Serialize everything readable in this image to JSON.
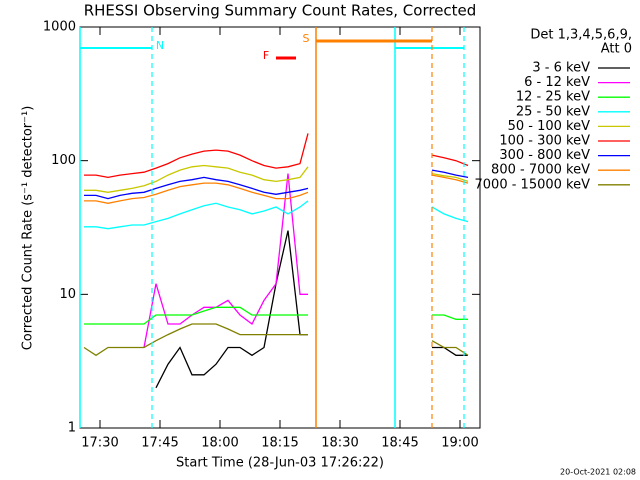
{
  "chart_data": {
    "type": "line",
    "title": "RHESSI Observing Summary Count Rates, Corrected",
    "xlabel": "Start Time (28-Jun-03 17:26:22)",
    "ylabel": "Corrected Count Rate (s⁻¹ detector⁻¹)",
    "legend_header": [
      "Det 1,3,4,5,6,9,",
      "Att 0"
    ],
    "footer": "20-Oct-2021 02:08",
    "log_y": true,
    "xlim": [
      1045,
      1145
    ],
    "xticks": [
      {
        "value": 1050,
        "label": "17:30"
      },
      {
        "value": 1065,
        "label": "17:45"
      },
      {
        "value": 1080,
        "label": "18:00"
      },
      {
        "value": 1095,
        "label": "18:15"
      },
      {
        "value": 1110,
        "label": "18:30"
      },
      {
        "value": 1125,
        "label": "18:45"
      },
      {
        "value": 1140,
        "label": "19:00"
      }
    ],
    "ylim": [
      1,
      1000
    ],
    "yticks": [
      1,
      10,
      100,
      1000
    ],
    "x": [
      1046,
      1049,
      1052,
      1055,
      1058,
      1061,
      1064,
      1067,
      1070,
      1073,
      1076,
      1079,
      1082,
      1085,
      1088,
      1091,
      1094,
      1097,
      1100,
      1102,
      1118,
      1133,
      1136,
      1139,
      1142
    ],
    "series": [
      {
        "name": "3 - 6 keV",
        "color": "#000000",
        "values": [
          null,
          null,
          null,
          null,
          null,
          null,
          2,
          3,
          4,
          2.5,
          2.5,
          3,
          4,
          4,
          3.5,
          4,
          12,
          30,
          5,
          5,
          null,
          4,
          4,
          3.5,
          3.5
        ]
      },
      {
        "name": "6 - 12 keV",
        "color": "#ff00ff",
        "values": [
          null,
          null,
          null,
          null,
          null,
          4,
          12,
          6,
          6,
          7,
          8,
          8,
          9,
          7,
          6,
          9,
          12,
          80,
          10,
          10,
          null,
          null,
          null,
          null,
          null
        ]
      },
      {
        "name": "12 - 25 keV",
        "color": "#00ff00",
        "values": [
          6,
          6,
          6,
          6,
          6,
          6,
          7,
          7,
          7,
          7,
          7.5,
          8,
          8,
          8,
          7,
          7,
          7,
          7,
          7,
          7,
          null,
          7,
          7,
          6.5,
          6.5
        ]
      },
      {
        "name": "25 - 50 keV",
        "color": "#00ffff",
        "values": [
          32,
          32,
          31,
          32,
          33,
          33,
          35,
          37,
          40,
          43,
          46,
          48,
          45,
          43,
          40,
          42,
          45,
          40,
          45,
          50,
          null,
          45,
          40,
          37,
          35
        ]
      },
      {
        "name": "50 - 100 keV",
        "color": "#c8c800",
        "values": [
          60,
          60,
          58,
          60,
          62,
          65,
          70,
          78,
          85,
          90,
          92,
          90,
          88,
          82,
          78,
          72,
          70,
          72,
          75,
          90,
          null,
          80,
          77,
          75,
          70
        ]
      },
      {
        "name": "100 - 300 keV",
        "color": "#ff0000",
        "values": [
          78,
          78,
          75,
          78,
          80,
          82,
          88,
          95,
          105,
          112,
          118,
          120,
          118,
          110,
          100,
          92,
          88,
          90,
          95,
          160,
          null,
          110,
          105,
          100,
          92
        ]
      },
      {
        "name": "300 - 800 keV",
        "color": "#0000ff",
        "values": [
          55,
          55,
          52,
          55,
          57,
          58,
          62,
          66,
          70,
          72,
          75,
          72,
          70,
          66,
          62,
          58,
          56,
          58,
          60,
          62,
          null,
          85,
          82,
          78,
          75
        ]
      },
      {
        "name": "800 - 7000 keV",
        "color": "#ff8000",
        "values": [
          50,
          50,
          48,
          50,
          52,
          53,
          56,
          60,
          64,
          66,
          68,
          68,
          66,
          62,
          58,
          55,
          52,
          52,
          55,
          58,
          null,
          78,
          75,
          72,
          68
        ]
      },
      {
        "name": "7000 - 15000 keV",
        "color": "#808000",
        "values": [
          4,
          3.5,
          4,
          4,
          4,
          4,
          4.5,
          5,
          5.5,
          6,
          6,
          6,
          5.5,
          5,
          5,
          5,
          5,
          5,
          5,
          5,
          null,
          4.5,
          4,
          4,
          3.5
        ]
      }
    ],
    "intervals": [
      {
        "label": "N",
        "color": "#00ffff",
        "start": 1045,
        "end": 1063
      },
      {
        "color": "#00ffff",
        "start": 1123.75,
        "end": 1141
      },
      {
        "label": "S",
        "color": "#ff8000",
        "start": 1104,
        "end": 1133
      },
      {
        "label": "F",
        "color": "#ff0000",
        "start": 1094,
        "end": 1099
      }
    ]
  }
}
